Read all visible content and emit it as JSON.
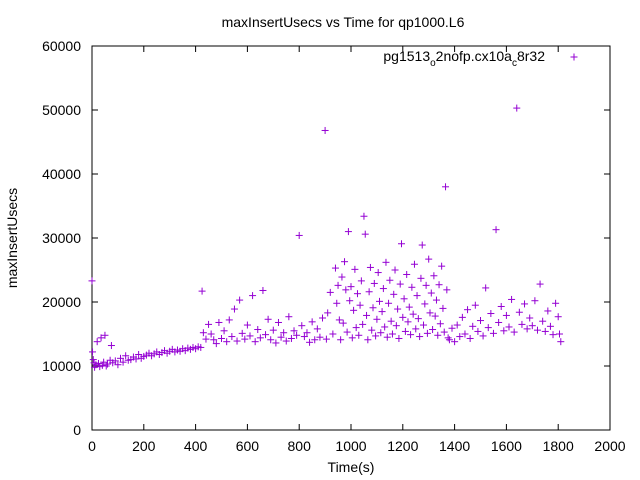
{
  "chart_data": {
    "type": "scatter",
    "title": "maxInsertUsecs vs Time for qp1000.L6",
    "xlabel": "Time(s)",
    "ylabel": "maxInsertUsecs",
    "xlim": [
      0,
      2000
    ],
    "ylim": [
      0,
      60000
    ],
    "x_ticks": [
      0,
      200,
      400,
      600,
      800,
      1000,
      1200,
      1400,
      1600,
      1800,
      2000
    ],
    "y_ticks": [
      0,
      10000,
      20000,
      30000,
      40000,
      50000,
      60000
    ],
    "grid": false,
    "legend_position": "top-right",
    "marker": "+",
    "series": [
      {
        "name_parts": {
          "a": "pg1513",
          "b": "o",
          "c": "2nofp.cx10a",
          "d": "c",
          "e": "8r32"
        },
        "color": "#9400d3",
        "points": [
          [
            0,
            23300
          ],
          [
            2,
            12200
          ],
          [
            5,
            11000
          ],
          [
            8,
            10500
          ],
          [
            10,
            9800
          ],
          [
            15,
            10200
          ],
          [
            20,
            13800
          ],
          [
            25,
            10400
          ],
          [
            30,
            9900
          ],
          [
            35,
            14400
          ],
          [
            40,
            10100
          ],
          [
            45,
            10600
          ],
          [
            50,
            14800
          ],
          [
            55,
            10000
          ],
          [
            60,
            10300
          ],
          [
            70,
            10900
          ],
          [
            75,
            13200
          ],
          [
            80,
            10500
          ],
          [
            90,
            10800
          ],
          [
            100,
            10200
          ],
          [
            110,
            11200
          ],
          [
            120,
            10600
          ],
          [
            130,
            11600
          ],
          [
            140,
            10900
          ],
          [
            150,
            11000
          ],
          [
            160,
            11400
          ],
          [
            170,
            11100
          ],
          [
            180,
            11800
          ],
          [
            190,
            11200
          ],
          [
            200,
            11500
          ],
          [
            210,
            11700
          ],
          [
            220,
            12000
          ],
          [
            230,
            11600
          ],
          [
            240,
            11900
          ],
          [
            250,
            12200
          ],
          [
            260,
            11800
          ],
          [
            270,
            12100
          ],
          [
            280,
            12400
          ],
          [
            290,
            12000
          ],
          [
            300,
            12300
          ],
          [
            310,
            12600
          ],
          [
            320,
            12200
          ],
          [
            330,
            12500
          ],
          [
            340,
            12300
          ],
          [
            350,
            12700
          ],
          [
            360,
            12400
          ],
          [
            370,
            12800
          ],
          [
            380,
            12600
          ],
          [
            390,
            12900
          ],
          [
            400,
            12700
          ],
          [
            410,
            13000
          ],
          [
            420,
            12900
          ],
          [
            425,
            21700
          ],
          [
            430,
            15200
          ],
          [
            440,
            14200
          ],
          [
            450,
            16500
          ],
          [
            460,
            15000
          ],
          [
            470,
            14100
          ],
          [
            480,
            13500
          ],
          [
            490,
            16800
          ],
          [
            500,
            14300
          ],
          [
            510,
            15500
          ],
          [
            520,
            13800
          ],
          [
            530,
            17200
          ],
          [
            540,
            14600
          ],
          [
            550,
            18900
          ],
          [
            560,
            13900
          ],
          [
            570,
            20300
          ],
          [
            580,
            15100
          ],
          [
            590,
            14200
          ],
          [
            600,
            16400
          ],
          [
            610,
            14700
          ],
          [
            620,
            21000
          ],
          [
            630,
            13800
          ],
          [
            640,
            15700
          ],
          [
            650,
            14400
          ],
          [
            660,
            21800
          ],
          [
            670,
            14900
          ],
          [
            680,
            17300
          ],
          [
            690,
            14100
          ],
          [
            700,
            15600
          ],
          [
            710,
            13600
          ],
          [
            720,
            16800
          ],
          [
            730,
            14500
          ],
          [
            740,
            15200
          ],
          [
            750,
            13900
          ],
          [
            760,
            17700
          ],
          [
            770,
            14300
          ],
          [
            780,
            15500
          ],
          [
            790,
            14800
          ],
          [
            800,
            30400
          ],
          [
            810,
            16300
          ],
          [
            820,
            14600
          ],
          [
            830,
            15200
          ],
          [
            840,
            13700
          ],
          [
            850,
            16900
          ],
          [
            860,
            14100
          ],
          [
            870,
            15800
          ],
          [
            880,
            14500
          ],
          [
            890,
            17500
          ],
          [
            900,
            46800
          ],
          [
            905,
            14200
          ],
          [
            910,
            18300
          ],
          [
            920,
            21500
          ],
          [
            930,
            15000
          ],
          [
            940,
            25300
          ],
          [
            945,
            19800
          ],
          [
            950,
            22600
          ],
          [
            955,
            17200
          ],
          [
            960,
            14100
          ],
          [
            965,
            23900
          ],
          [
            970,
            16700
          ],
          [
            975,
            26300
          ],
          [
            980,
            21900
          ],
          [
            985,
            15300
          ],
          [
            990,
            31000
          ],
          [
            995,
            20200
          ],
          [
            1000,
            22400
          ],
          [
            1005,
            14400
          ],
          [
            1010,
            18700
          ],
          [
            1015,
            25100
          ],
          [
            1020,
            16000
          ],
          [
            1025,
            21300
          ],
          [
            1030,
            14800
          ],
          [
            1035,
            19500
          ],
          [
            1040,
            23300
          ],
          [
            1045,
            16500
          ],
          [
            1050,
            33400
          ],
          [
            1055,
            30600
          ],
          [
            1060,
            17900
          ],
          [
            1065,
            14100
          ],
          [
            1070,
            21600
          ],
          [
            1075,
            25400
          ],
          [
            1080,
            15600
          ],
          [
            1085,
            19100
          ],
          [
            1090,
            22900
          ],
          [
            1095,
            14700
          ],
          [
            1100,
            17300
          ],
          [
            1105,
            24600
          ],
          [
            1110,
            20100
          ],
          [
            1115,
            15200
          ],
          [
            1120,
            18500
          ],
          [
            1125,
            22100
          ],
          [
            1130,
            16100
          ],
          [
            1135,
            26200
          ],
          [
            1140,
            14500
          ],
          [
            1145,
            19800
          ],
          [
            1150,
            23400
          ],
          [
            1155,
            17000
          ],
          [
            1160,
            15000
          ],
          [
            1165,
            21200
          ],
          [
            1170,
            25000
          ],
          [
            1175,
            16300
          ],
          [
            1180,
            18900
          ],
          [
            1185,
            14300
          ],
          [
            1190,
            22800
          ],
          [
            1195,
            29100
          ],
          [
            1200,
            17600
          ],
          [
            1205,
            20500
          ],
          [
            1210,
            15400
          ],
          [
            1215,
            24300
          ],
          [
            1220,
            16900
          ],
          [
            1225,
            19200
          ],
          [
            1230,
            14900
          ],
          [
            1235,
            22300
          ],
          [
            1240,
            18100
          ],
          [
            1245,
            25900
          ],
          [
            1250,
            15800
          ],
          [
            1255,
            21000
          ],
          [
            1260,
            17400
          ],
          [
            1265,
            14600
          ],
          [
            1270,
            23700
          ],
          [
            1275,
            28900
          ],
          [
            1280,
            16400
          ],
          [
            1285,
            19700
          ],
          [
            1290,
            22600
          ],
          [
            1295,
            15100
          ],
          [
            1300,
            26700
          ],
          [
            1305,
            18300
          ],
          [
            1310,
            21400
          ],
          [
            1315,
            15700
          ],
          [
            1320,
            24100
          ],
          [
            1325,
            17800
          ],
          [
            1330,
            20300
          ],
          [
            1335,
            14800
          ],
          [
            1340,
            22700
          ],
          [
            1345,
            16600
          ],
          [
            1350,
            25600
          ],
          [
            1355,
            19000
          ],
          [
            1360,
            15300
          ],
          [
            1365,
            38000
          ],
          [
            1370,
            21900
          ],
          [
            1375,
            14400
          ],
          [
            1380,
            14100
          ],
          [
            1390,
            15900
          ],
          [
            1400,
            13800
          ],
          [
            1410,
            16400
          ],
          [
            1420,
            14600
          ],
          [
            1430,
            17600
          ],
          [
            1440,
            15000
          ],
          [
            1450,
            18800
          ],
          [
            1460,
            14300
          ],
          [
            1470,
            16200
          ],
          [
            1480,
            19500
          ],
          [
            1490,
            15400
          ],
          [
            1500,
            17100
          ],
          [
            1510,
            14700
          ],
          [
            1520,
            22200
          ],
          [
            1530,
            16000
          ],
          [
            1540,
            18200
          ],
          [
            1550,
            15100
          ],
          [
            1560,
            31300
          ],
          [
            1570,
            16800
          ],
          [
            1580,
            19300
          ],
          [
            1590,
            15500
          ],
          [
            1600,
            17900
          ],
          [
            1610,
            16100
          ],
          [
            1620,
            20400
          ],
          [
            1630,
            15300
          ],
          [
            1640,
            50300
          ],
          [
            1650,
            18400
          ],
          [
            1660,
            16500
          ],
          [
            1670,
            19700
          ],
          [
            1680,
            15800
          ],
          [
            1690,
            17500
          ],
          [
            1700,
            16300
          ],
          [
            1710,
            20200
          ],
          [
            1720,
            15600
          ],
          [
            1730,
            22800
          ],
          [
            1740,
            17000
          ],
          [
            1750,
            15400
          ],
          [
            1760,
            18600
          ],
          [
            1770,
            16200
          ],
          [
            1780,
            14900
          ],
          [
            1790,
            19800
          ],
          [
            1800,
            17700
          ],
          [
            1805,
            15000
          ],
          [
            1810,
            13800
          ]
        ]
      }
    ]
  }
}
